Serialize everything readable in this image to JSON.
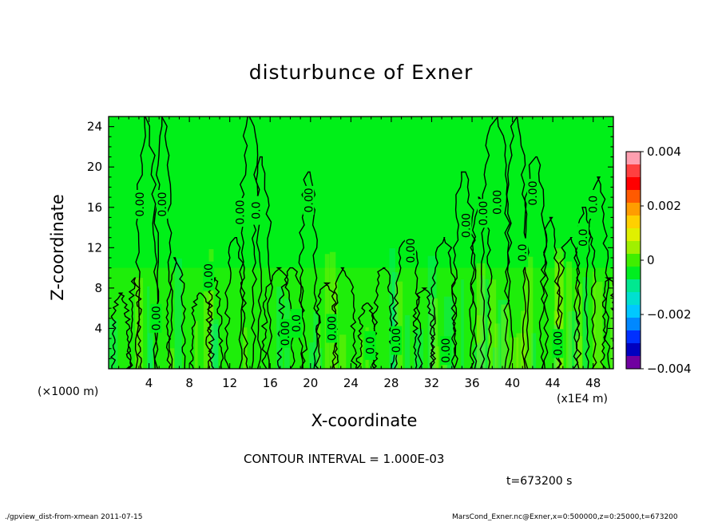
{
  "chart_data": {
    "type": "heatmap",
    "title": "disturbunce of Exner",
    "xlabel": "X-coordinate",
    "ylabel": "Z-coordinate",
    "x_unit": "(×1000 m)",
    "x_unit_right": "(x1E4 m)",
    "xlim": [
      0,
      50
    ],
    "ylim": [
      0,
      25
    ],
    "x_ticks": [
      4,
      8,
      12,
      16,
      20,
      24,
      28,
      32,
      36,
      40,
      44,
      48
    ],
    "y_ticks": [
      4,
      8,
      12,
      16,
      20,
      24
    ],
    "colorbar": {
      "range": [
        -0.004,
        0.004
      ],
      "tick_labels": [
        "0.004",
        "0.002",
        "0",
        "−0.002",
        "−0.004"
      ],
      "tick_values": [
        0.004,
        0.002,
        0,
        -0.002,
        -0.004
      ],
      "colors": [
        "#ff9fb0",
        "#ff4040",
        "#ff0000",
        "#ff5a00",
        "#ff9d00",
        "#ffd000",
        "#e0f000",
        "#a0f000",
        "#40ee00",
        "#00ee20",
        "#00e890",
        "#00e0d0",
        "#00c8ff",
        "#0088ff",
        "#0030ff",
        "#0000c0",
        "#7000a0"
      ]
    },
    "background_color": "#00f018",
    "contour_labels": [
      {
        "x": 3.1,
        "z": 16.3,
        "text": "0.00"
      },
      {
        "x": 5.3,
        "z": 16.3,
        "text": "0.00"
      },
      {
        "x": 13.0,
        "z": 15.5,
        "text": "0.00"
      },
      {
        "x": 14.6,
        "z": 15.7,
        "text": "0.0"
      },
      {
        "x": 19.8,
        "z": 16.7,
        "text": "0.00"
      },
      {
        "x": 9.9,
        "z": 9.2,
        "text": "0.00"
      },
      {
        "x": 4.7,
        "z": 5.0,
        "text": "0.00"
      },
      {
        "x": 17.5,
        "z": 3.5,
        "text": "0.00"
      },
      {
        "x": 18.6,
        "z": 4.5,
        "text": "0.0"
      },
      {
        "x": 22.1,
        "z": 4.0,
        "text": "0.00"
      },
      {
        "x": 25.9,
        "z": 2.3,
        "text": "0.0"
      },
      {
        "x": 28.5,
        "z": 2.8,
        "text": "0.00"
      },
      {
        "x": 29.9,
        "z": 11.7,
        "text": "0.00"
      },
      {
        "x": 33.4,
        "z": 1.8,
        "text": "0.00"
      },
      {
        "x": 35.4,
        "z": 14.2,
        "text": "0.00"
      },
      {
        "x": 37.1,
        "z": 15.4,
        "text": "0.00"
      },
      {
        "x": 38.5,
        "z": 16.5,
        "text": "0.00"
      },
      {
        "x": 42.0,
        "z": 17.4,
        "text": "0.00"
      },
      {
        "x": 41.0,
        "z": 11.5,
        "text": "0.0"
      },
      {
        "x": 44.5,
        "z": 2.5,
        "text": "0.00"
      },
      {
        "x": 47.0,
        "z": 13.0,
        "text": "0.0"
      },
      {
        "x": 48.0,
        "z": 16.3,
        "text": "0.0"
      }
    ]
  },
  "contour_interval": "CONTOUR INTERVAL = 1.000E-03",
  "time_label": "t=673200 s",
  "footer_left": "./gpview_dist-from-xmean   2011-07-15",
  "footer_right": "MarsCond_Exner.nc@Exner,x=0:500000,z=0:25000,t=673200"
}
